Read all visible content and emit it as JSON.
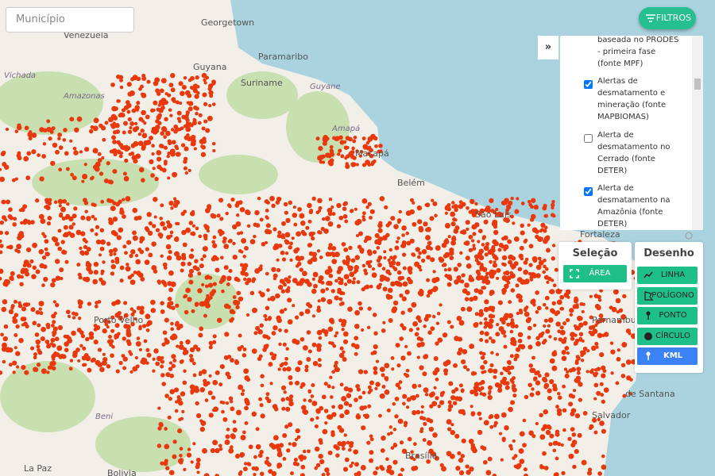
{
  "search": {
    "placeholder": "Município"
  },
  "filters_button": {
    "label": "FILTROS"
  },
  "layers_panel": {
    "toggle": "»",
    "items": [
      {
        "label": "baseada no PRODES - primeira fase (fonte MPF)",
        "checked": true
      },
      {
        "label": "Alertas de desmatamento e mineração (fonte MAPBIOMAS)",
        "checked": true
      },
      {
        "label": "Alerta de desmatamento no Cerrado (fonte DETER)",
        "checked": false
      },
      {
        "label": "Alerta de desmatamento na Amazônia (fonte DETER)",
        "checked": true
      }
    ]
  },
  "selection_panel": {
    "title": "Seleção",
    "buttons": [
      "ÁREA"
    ]
  },
  "drawing_panel": {
    "title": "Desenho",
    "buttons": [
      "LINHA",
      "POLÍGONO",
      "PONTO",
      "CÍRCULO",
      "KML"
    ]
  },
  "map_labels": [
    "Venezuela",
    "Georgetown",
    "Guyana",
    "Paramaribo",
    "Suriname",
    "Guyane",
    "Vichada",
    "Amazonas",
    "Amapá",
    "Macapá",
    "Belém",
    "São Luís",
    "Fortaleza",
    "Pernambuco",
    "Porto Velho",
    "Beni",
    "La Paz",
    "Bolivia",
    "Brasília",
    "de Santana",
    "Salvador"
  ]
}
